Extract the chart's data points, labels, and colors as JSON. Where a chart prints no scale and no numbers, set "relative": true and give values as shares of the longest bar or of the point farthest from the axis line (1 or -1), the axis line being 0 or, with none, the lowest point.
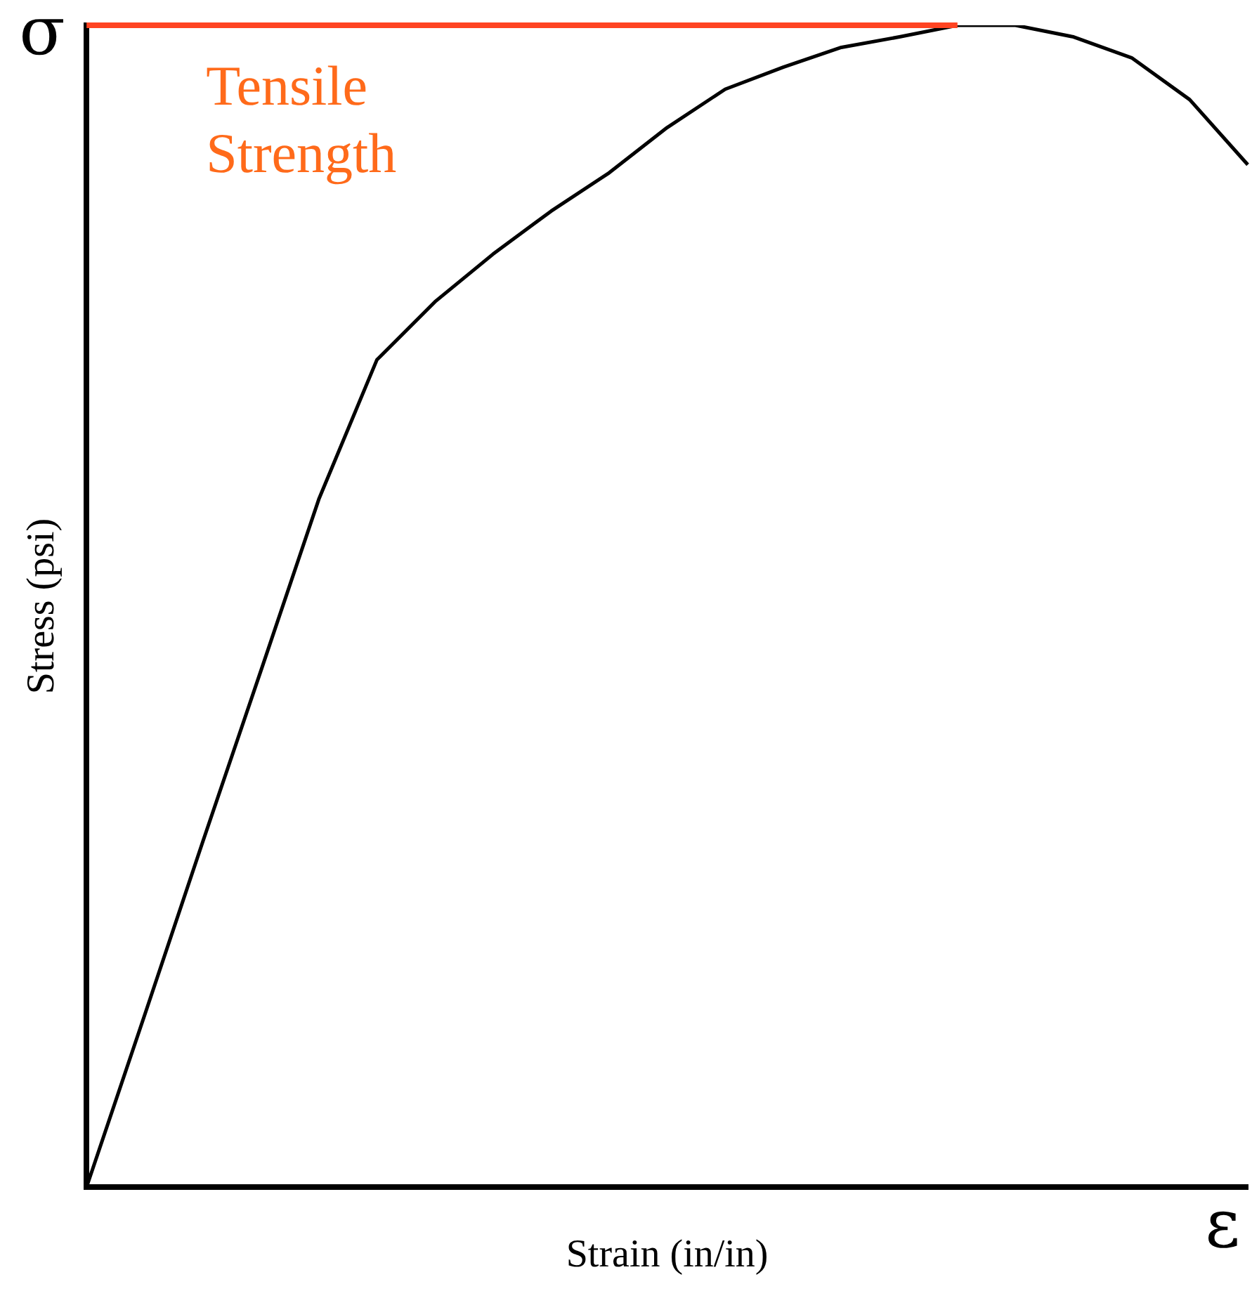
{
  "chart_data": {
    "type": "line",
    "relative": true,
    "xlabel": "Strain (in/in)",
    "ylabel": "Stress (psi)",
    "categories": [
      null,
      null,
      null,
      null,
      null,
      null,
      null,
      null,
      null,
      null,
      null,
      null,
      null,
      null,
      null,
      null,
      null,
      null,
      null,
      null,
      null
    ],
    "series": [
      {
        "color": "#000000",
        "values": [
          0,
          0.148,
          0.297,
          0.444,
          0.592,
          0.712,
          0.762,
          0.803,
          0.84,
          0.873,
          0.912,
          0.945,
          0.964,
          0.981,
          0.99,
          1.0,
          1.0,
          0.99,
          0.972,
          0.936,
          0.88
        ]
      }
    ],
    "ref_lines": [
      {
        "axis": "y",
        "value": 1.0,
        "label": "Tensile Strength",
        "color": "#ff4422"
      }
    ],
    "annotations": [
      "σ",
      "ε"
    ],
    "grid": false,
    "legend": false,
    "marker": "none",
    "line_style": "solid"
  }
}
